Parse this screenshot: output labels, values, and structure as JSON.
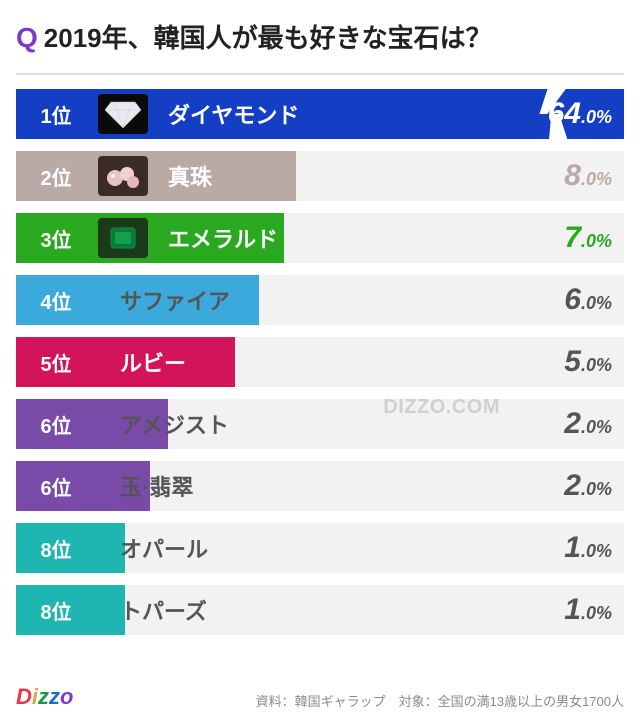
{
  "title_q": "Q",
  "title_text": "2019年、韓国人が最も好きな宝石は？",
  "watermark": "DIZZO.COM",
  "logo_text": "Dizzo",
  "source_text": "資料：韓国ギャラップ　対象：全国の満13歳以上の男女1700人",
  "chart": {
    "type": "bar",
    "bg_color": "#f2f2f2",
    "rows": [
      {
        "rank": "1位",
        "label": "ダイヤモンド",
        "pct_big": "64",
        "pct_small": ".0%",
        "bar_pct": 100,
        "bar_color": "#143fc4",
        "rank_bg": "#143fc4",
        "label_color": "#ffffff",
        "pct_color": "#ffffff",
        "has_icon": true,
        "icon_bg": "#0a0a0a",
        "icon_svg": "diamond",
        "has_cut": true
      },
      {
        "rank": "2位",
        "label": "真珠",
        "pct_big": "8",
        "pct_small": ".0%",
        "bar_pct": 46,
        "bar_color": "#b9aaa6",
        "rank_bg": "#b9aaa6",
        "label_color": "#ffffff",
        "pct_color": "#b9aaa6",
        "has_icon": true,
        "icon_bg": "#3a2a28",
        "icon_svg": "pearls"
      },
      {
        "rank": "3位",
        "label": "エメラルド",
        "pct_big": "7",
        "pct_small": ".0%",
        "bar_pct": 44,
        "bar_color": "#2aa81f",
        "rank_bg": "#2aa81f",
        "label_color": "#ffffff",
        "pct_color": "#2aa81f",
        "has_icon": true,
        "icon_bg": "#1a3a1a",
        "icon_svg": "emerald"
      },
      {
        "rank": "4位",
        "label": "サファイア",
        "pct_big": "6",
        "pct_small": ".0%",
        "bar_pct": 40,
        "bar_color": "#3ba9db",
        "rank_bg": "#3ba9db",
        "label_color": "#555555",
        "pct_color": "#555555"
      },
      {
        "rank": "5位",
        "label": "ルビー",
        "pct_big": "5",
        "pct_small": ".0%",
        "bar_pct": 36,
        "bar_color": "#d4145a",
        "rank_bg": "#d4145a",
        "label_color": "#ffffff",
        "pct_color": "#555555"
      },
      {
        "rank": "6位",
        "label": "アメジスト",
        "pct_big": "2",
        "pct_small": ".0%",
        "bar_pct": 25,
        "bar_color": "#7a4aa8",
        "rank_bg": "#7a4aa8",
        "label_color": "#555555",
        "pct_color": "#555555"
      },
      {
        "rank": "6位",
        "label": "玉·翡翠",
        "pct_big": "2",
        "pct_small": ".0%",
        "bar_pct": 22,
        "bar_color": "#7a4aa8",
        "rank_bg": "#7a4aa8",
        "label_color": "#555555",
        "pct_color": "#555555"
      },
      {
        "rank": "8位",
        "label": "オパール",
        "pct_big": "1",
        "pct_small": ".0%",
        "bar_pct": 18,
        "bar_color": "#1fb5b0",
        "rank_bg": "#1fb5b0",
        "label_color": "#555555",
        "pct_color": "#555555"
      },
      {
        "rank": "8位",
        "label": "トパーズ",
        "pct_big": "1",
        "pct_small": ".0%",
        "bar_pct": 18,
        "bar_color": "#1fb5b0",
        "rank_bg": "#1fb5b0",
        "label_color": "#555555",
        "pct_color": "#555555"
      }
    ]
  }
}
